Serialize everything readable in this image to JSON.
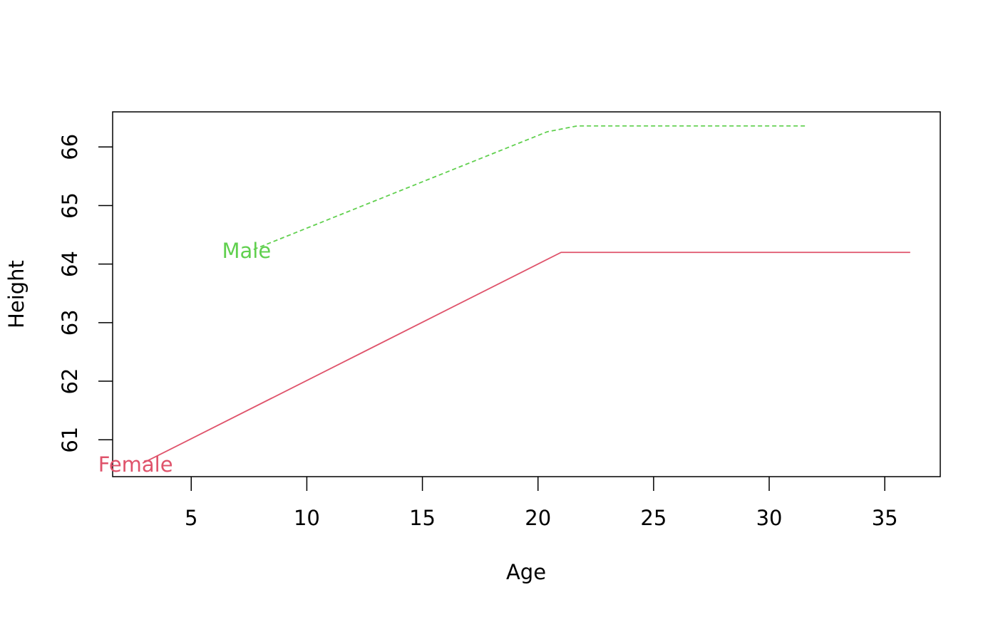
{
  "chart_data": {
    "type": "line",
    "x_label": "Age",
    "y_label": "Height",
    "xlim": [
      1.6,
      37.4
    ],
    "ylim": [
      60.37,
      66.6
    ],
    "xticks": [
      5,
      10,
      15,
      20,
      25,
      30,
      35
    ],
    "yticks": [
      61,
      62,
      63,
      64,
      65,
      66
    ],
    "series": [
      {
        "name": "Female",
        "color": "#DF536B",
        "line_style": "solid",
        "x": [
          2.9,
          21,
          36.1
        ],
        "values": [
          60.6,
          64.2,
          64.2
        ]
      },
      {
        "name": "Male",
        "color": "#61D04F",
        "line_style": "dashed",
        "x": [
          7.7,
          20.4,
          21.7,
          31.6
        ],
        "values": [
          64.25,
          66.26,
          66.36,
          66.36
        ]
      }
    ]
  }
}
